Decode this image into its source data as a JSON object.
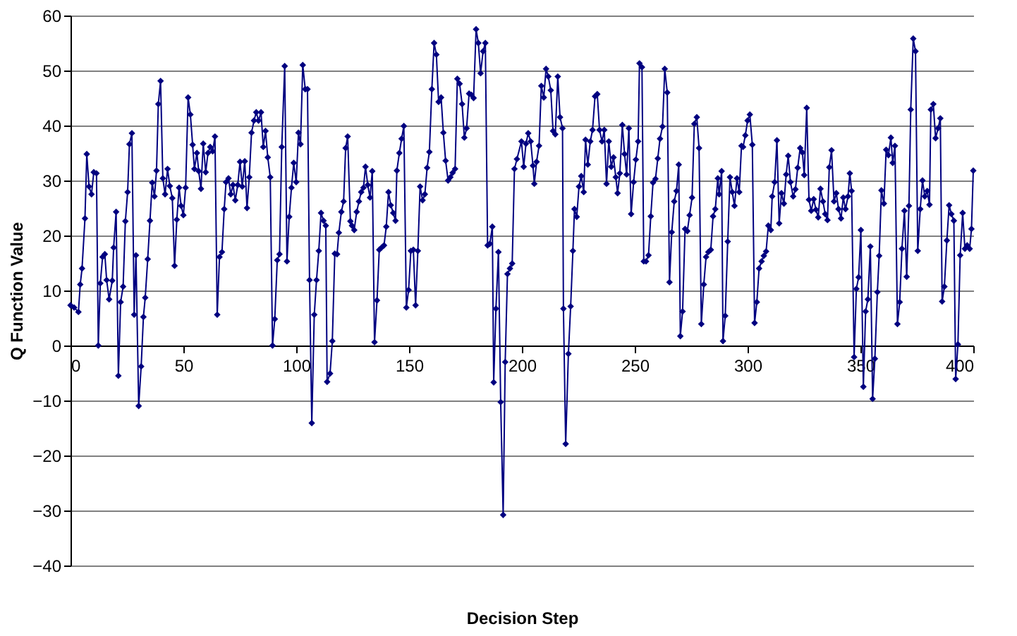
{
  "chart_data": {
    "type": "line",
    "xlabel": "Decision Step",
    "ylabel": "Q Function Value",
    "xlim": [
      0,
      400
    ],
    "xticks": [
      0,
      50,
      100,
      150,
      200,
      250,
      300,
      350,
      400
    ],
    "ylim": [
      -40,
      60
    ],
    "yticks": [
      -40,
      -30,
      -20,
      -10,
      0,
      10,
      20,
      30,
      40,
      50,
      60
    ],
    "grid": "y",
    "marker": "diamond",
    "line_style": "solid",
    "series": [
      {
        "color": "#000080",
        "x": [
          0,
          1.6,
          3.5,
          4.3,
          5.1,
          6.4,
          7.2,
          8.2,
          9.3,
          10.3,
          11.5,
          12.3,
          13.2,
          14.2,
          15.2,
          16,
          17.1,
          18.5,
          19.1,
          20.2,
          21.2,
          22.2,
          23.3,
          24.3,
          25.3,
          26.1,
          27.2,
          28.2,
          29,
          30.2,
          31.3,
          32.3,
          33.1,
          34.2,
          35.2,
          36.2,
          37.2,
          38.1,
          38.9,
          39.9,
          40.9,
          41.9,
          43,
          44,
          45.1,
          46.1,
          47.1,
          48.1,
          49,
          50,
          51,
          52.1,
          53.1,
          54.1,
          54.9,
          56,
          56.8,
          57.8,
          58.8,
          59.9,
          60.9,
          61.9,
          63,
          64,
          65,
          66,
          67.1,
          68.1,
          68.9,
          70,
          71,
          72,
          73,
          74.1,
          75.1,
          76.1,
          77.2,
          78.2,
          79.2,
          80.2,
          81.3,
          82.3,
          83.3,
          84.4,
          85.4,
          86.4,
          87.4,
          88.5,
          89.5,
          90.5,
          91.6,
          92.6,
          93.6,
          94.9,
          95.9,
          96.9,
          97.9,
          98.9,
          100,
          101,
          101.9,
          102.9,
          104,
          105,
          105.9,
          106.9,
          108,
          109,
          110,
          111,
          112.1,
          113.1,
          113.7,
          115,
          116,
          117.1,
          118.1,
          118.9,
          120,
          121,
          121.9,
          122.8,
          124,
          124.7,
          125.7,
          126.8,
          127.8,
          128.8,
          129.8,
          130.7,
          131.7,
          132.7,
          133.7,
          134.7,
          135.8,
          136.8,
          137.8,
          138.9,
          139.9,
          140.9,
          141.9,
          143,
          144,
          144.6,
          145.7,
          146.7,
          147.7,
          148.8,
          149.8,
          150.8,
          151.9,
          152.9,
          153.9,
          154.9,
          156,
          157,
          158,
          159,
          160.1,
          161.1,
          162.1,
          163.1,
          164.2,
          165.2,
          166.2,
          167.3,
          168.3,
          169.3,
          170.4,
          171.4,
          172.4,
          173.5,
          174.5,
          175.5,
          176.6,
          177.6,
          178.6,
          179.7,
          180.7,
          181.7,
          182.8,
          183.8,
          184.8,
          185.8,
          186.9,
          187.5,
          188.5,
          189.6,
          190.6,
          191.7,
          192.6,
          193.6,
          194.7,
          195.7,
          196.7,
          197.8,
          199.8,
          200.8,
          201.8,
          202.8,
          203.9,
          204.9,
          205.5,
          206.5,
          207.6,
          208.6,
          209.7,
          210.7,
          211.7,
          212.8,
          213.8,
          214.8,
          215.9,
          216.9,
          218,
          218.4,
          219.4,
          220.6,
          221.6,
          222.6,
          223.3,
          224.3,
          225.3,
          226.3,
          227.4,
          228.2,
          229.2,
          230.3,
          231.3,
          232.4,
          233.4,
          234.4,
          235.5,
          236.5,
          237.5,
          238.5,
          239.6,
          240.6,
          241.6,
          242.4,
          243.4,
          244.5,
          245.5,
          246.4,
          247.4,
          248.4,
          249.5,
          250.5,
          251.5,
          252.1,
          253.2,
          254,
          255,
          256.1,
          257.1,
          258.1,
          259.2,
          260.2,
          261.2,
          262.3,
          263.3,
          264.4,
          265.4,
          266.4,
          267.5,
          268.5,
          269.5,
          270.2,
          271.2,
          272.3,
          273.3,
          274.3,
          275.4,
          276.4,
          277.5,
          278.5,
          279.5,
          280.6,
          281.6,
          282.6,
          283.7,
          284.7,
          285.7,
          286.8,
          287.4,
          288.5,
          289.1,
          290.1,
          291.2,
          292.2,
          293.2,
          294.2,
          295.3,
          296.3,
          297.3,
          298,
          299,
          300,
          301,
          302.1,
          303.1,
          304.1,
          305.1,
          306.2,
          307.2,
          308.2,
          309.2,
          310.3,
          310.9,
          312,
          313,
          314,
          315,
          316.1,
          317.1,
          318,
          319,
          320.2,
          321.2,
          322.2,
          323.3,
          324.3,
          325.1,
          326.2,
          327.2,
          328.2,
          329.3,
          330.3,
          331.3,
          332.3,
          333.4,
          334.4,
          335.4,
          336.2,
          337.2,
          338.3,
          339.3,
          340.3,
          341.4,
          342.4,
          343.4,
          344.5,
          345.3,
          346.1,
          347.2,
          348.2,
          349.2,
          350.2,
          351.3,
          352.3,
          353.3,
          354.4,
          355.4,
          356.4,
          357.5,
          358.3,
          359.3,
          360.4,
          361.4,
          362.4,
          363.5,
          364.3,
          365.3,
          366.4,
          367.4,
          368.4,
          369.5,
          370.5,
          371.5,
          372.3,
          373.4,
          374.4,
          375.4,
          376.5,
          377.5,
          378.5,
          379.6,
          380.6,
          381.2,
          382.3,
          383.3,
          384.4,
          385.4,
          386.2,
          387.2,
          388.3,
          389.3,
          390.3,
          391.4,
          392.2,
          393.2,
          394.2,
          395.3,
          396.3,
          397.3,
          398.4,
          399.2,
          400
        ],
        "values": [
          7.3,
          6.9,
          6.1,
          11.1,
          14,
          23.1,
          34.8,
          28.9,
          27.5,
          31.5,
          31.3,
          0,
          11.3,
          16.1,
          16.6,
          11.9,
          8.4,
          11.8,
          17.8,
          24.3,
          -5.5,
          7.9,
          10.7,
          22.6,
          27.9,
          36.6,
          38.6,
          5.6,
          16.4,
          -11,
          -3.8,
          5.2,
          8.7,
          15.7,
          22.7,
          29.6,
          27.1,
          31.8,
          43.9,
          48.1,
          30.4,
          27.5,
          32.1,
          29,
          26.8,
          14.5,
          22.9,
          28.7,
          25.4,
          23.7,
          28.7,
          45.1,
          42,
          36.5,
          32.1,
          35,
          31.7,
          28.5,
          36.7,
          31.5,
          35,
          36.1,
          35.3,
          38,
          5.6,
          16.1,
          17,
          24.8,
          29.7,
          30.4,
          27.5,
          29.2,
          26.4,
          29.2,
          33.4,
          28.9,
          33.5,
          25,
          30.6,
          38.7,
          40.9,
          42.4,
          40.9,
          42.4,
          36.1,
          39,
          34.2,
          30.6,
          0,
          4.8,
          15.5,
          16.6,
          36.1,
          50.8,
          15.3,
          23.4,
          28.7,
          33.2,
          29.7,
          38.7,
          36.6,
          51,
          46.6,
          46.6,
          11.9,
          -14.1,
          5.6,
          11.9,
          17.2,
          24.1,
          22.7,
          21.8,
          -6.6,
          -5.1,
          0.8,
          16.7,
          16.6,
          20.5,
          24.3,
          26.2,
          35.9,
          38,
          22.6,
          21.8,
          21,
          24.3,
          26.2,
          27.9,
          28.7,
          32.5,
          29.2,
          26.9,
          31.7,
          0.6,
          8.2,
          17.4,
          17.8,
          18.2,
          21.6,
          27.9,
          25.5,
          24.1,
          22.7,
          31.8,
          35,
          37.6,
          39.9,
          6.9,
          10.1,
          17.2,
          17.4,
          7.3,
          17.2,
          28.9,
          26.4,
          27.5,
          32.3,
          35.2,
          46.6,
          55,
          52.9,
          44.3,
          45.1,
          38.7,
          33.6,
          30,
          30.6,
          31.4,
          32.1,
          48.5,
          47.6,
          43.9,
          37.8,
          39.5,
          45.8,
          45.6,
          45,
          57.5,
          55,
          49.5,
          53.5,
          55,
          18.2,
          18.5,
          21.6,
          -6.7,
          6.7,
          17,
          -10.3,
          -30.8,
          -3,
          13,
          14,
          14.9,
          32.1,
          33.9,
          37.1,
          32.5,
          36.7,
          38.6,
          37.1,
          32.7,
          29.4,
          33.4,
          36.3,
          47.2,
          45.1,
          50.3,
          48.9,
          46.4,
          39,
          38.4,
          48.9,
          41.5,
          39.5,
          6.7,
          -17.9,
          -1.5,
          7.1,
          17.2,
          24.8,
          23.4,
          28.9,
          30.8,
          27.9,
          37.4,
          32.9,
          37.1,
          39.2,
          45.3,
          45.7,
          39.2,
          37.1,
          39.2,
          29.4,
          37.1,
          32.5,
          34.2,
          30.6,
          27.7,
          31.3,
          40.1,
          34.8,
          31.1,
          39.5,
          23.9,
          29.7,
          33.8,
          37.1,
          51.3,
          50.6,
          15.3,
          15.3,
          16.4,
          23.5,
          29.6,
          30.3,
          34,
          37.6,
          39.8,
          50.3,
          46,
          11.5,
          20.6,
          26.2,
          28.1,
          32.9,
          1.7,
          6.2,
          21.2,
          20.8,
          23.7,
          26.9,
          40.3,
          41.5,
          35.9,
          3.9,
          11.1,
          16.1,
          17,
          17.4,
          23.5,
          24.8,
          30.4,
          27.5,
          31.7,
          0.8,
          5.4,
          18.9,
          30.6,
          27.9,
          25.4,
          30.4,
          27.9,
          36.3,
          36.1,
          38.2,
          40.9,
          42,
          36.5,
          4.1,
          7.9,
          14,
          15.3,
          16.3,
          17.1,
          21.8,
          21,
          27.1,
          29.7,
          37.3,
          22.2,
          27.7,
          25.8,
          31.1,
          34.5,
          29.7,
          27.1,
          28.4,
          32.3,
          35.9,
          35.1,
          31,
          43.2,
          26.5,
          24.5,
          26.6,
          24.7,
          23.3,
          28.5,
          26.2,
          23.9,
          22.8,
          32.4,
          35.5,
          26.2,
          27.7,
          24.8,
          23.1,
          26.9,
          24.8,
          27.1,
          31.3,
          28.1,
          -2.1,
          10.3,
          12.4,
          21,
          -7.5,
          6.2,
          8.4,
          18,
          -9.7,
          -2.4,
          9.7,
          16.3,
          28.2,
          25.8,
          35.6,
          34.6,
          37.8,
          33.2,
          36.3,
          3.9,
          7.9,
          17.6,
          24.5,
          12.5,
          25.4,
          42.9,
          55.8,
          53.5,
          17.2,
          24.8,
          30,
          27.1,
          28.1,
          25.6,
          42.9,
          43.9,
          37.7,
          39.5,
          41.3,
          8,
          10.7,
          19.1,
          25.5,
          23.9,
          22.7,
          -6.1,
          0.2,
          16.4,
          24.1,
          17.6,
          18.2,
          17.6,
          21.2,
          31.8
        ]
      }
    ]
  }
}
